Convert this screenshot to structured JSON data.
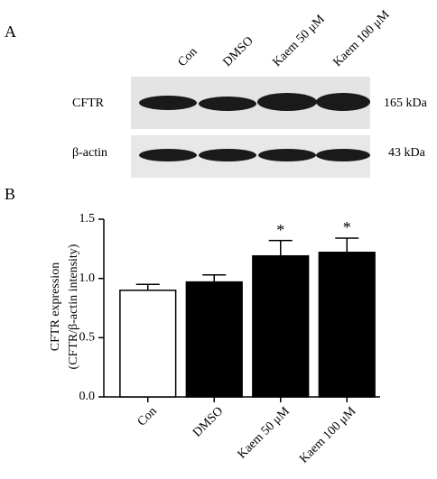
{
  "panel_a": {
    "label": "A",
    "blot": {
      "lanes": [
        "Con",
        "DMSO",
        "Kaem 50 μM",
        "Kaem 100 μM"
      ],
      "rows": [
        {
          "name": "CFTR",
          "size": "165 kDa"
        },
        {
          "name": "β-actin",
          "size": "43 kDa"
        }
      ]
    }
  },
  "panel_b": {
    "label": "B"
  },
  "chart_data": {
    "type": "bar",
    "ylabel": [
      "CFTR expression",
      "(CFTR/β-actin intensity)"
    ],
    "categories": [
      "Con",
      "DMSO",
      "Kaem 50 μM",
      "Kaem 100 μM"
    ],
    "values": [
      0.9,
      0.97,
      1.19,
      1.22
    ],
    "errors": [
      0.05,
      0.06,
      0.13,
      0.12
    ],
    "significance": [
      null,
      null,
      "*",
      "*"
    ],
    "colors": [
      "#ffffff",
      "#000000",
      "#000000",
      "#000000"
    ],
    "edgecolor": "#000000",
    "ylim": [
      0,
      1.5
    ],
    "yticks": [
      {
        "value": 0,
        "label": "0.0"
      },
      0.5,
      {
        "value": 1,
        "label": "1.0"
      },
      1.5
    ],
    "grid": false
  }
}
